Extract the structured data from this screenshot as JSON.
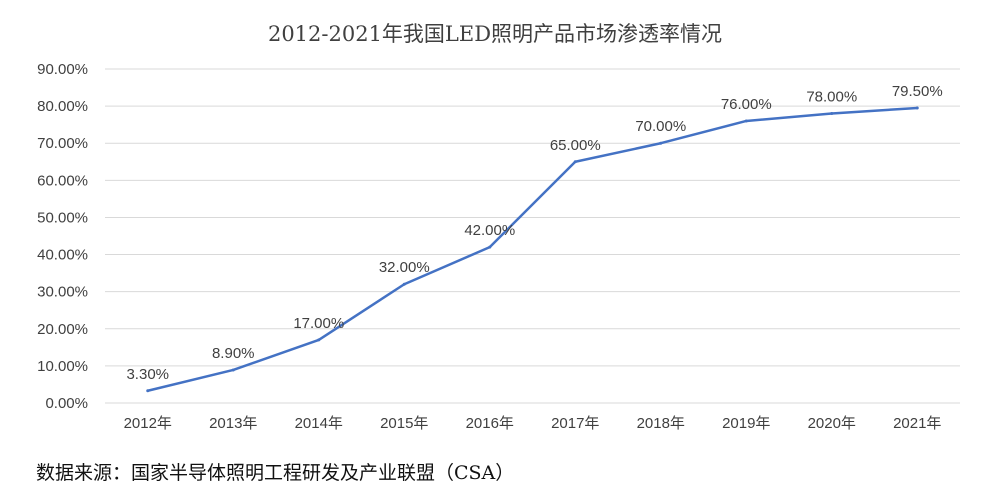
{
  "chart_data": {
    "type": "line",
    "title": "2012-2021年我国LED照明产品市场渗透率情况",
    "xlabel": "",
    "ylabel": "",
    "categories": [
      "2012年",
      "2013年",
      "2014年",
      "2015年",
      "2016年",
      "2017年",
      "2018年",
      "2019年",
      "2020年",
      "2021年"
    ],
    "series": [
      {
        "values": [
          3.3,
          8.9,
          17.0,
          32.0,
          42.0,
          65.0,
          70.0,
          76.0,
          78.0,
          79.5
        ],
        "data_labels": [
          "3.30%",
          "8.90%",
          "17.00%",
          "32.00%",
          "42.00%",
          "65.00%",
          "70.00%",
          "76.00%",
          "78.00%",
          "79.50%"
        ],
        "color": "#4472c4"
      }
    ],
    "ylim": [
      0,
      90
    ],
    "y_ticks": [
      0,
      10,
      20,
      30,
      40,
      50,
      60,
      70,
      80,
      90
    ],
    "y_tick_labels": [
      "0.00%",
      "10.00%",
      "20.00%",
      "30.00%",
      "40.00%",
      "50.00%",
      "60.00%",
      "70.00%",
      "80.00%",
      "90.00%"
    ],
    "grid": true,
    "legend": "none"
  },
  "source_note": "数据来源：国家半导体照明工程研发及产业联盟（CSA）"
}
